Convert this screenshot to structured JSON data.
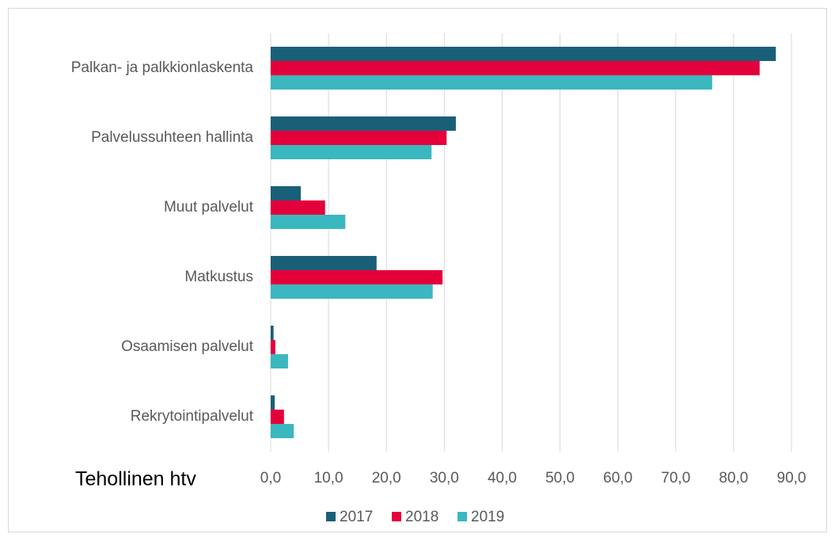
{
  "chart_data": {
    "type": "bar",
    "orientation": "horizontal",
    "x_label": "Tehollinen htv",
    "categories": [
      "Palkan- ja palkkionlaskenta",
      "Palvelussuhteen hallinta",
      "Muut palvelut",
      "Matkustus",
      "Osaamisen palvelut",
      "Rekrytointipalvelut"
    ],
    "series": [
      {
        "name": "2017",
        "color": "#1a5f78",
        "values": [
          87.3,
          32.0,
          5.2,
          18.3,
          0.5,
          0.7
        ]
      },
      {
        "name": "2018",
        "color": "#e4003a",
        "values": [
          84.5,
          30.4,
          9.4,
          29.7,
          0.8,
          2.3
        ]
      },
      {
        "name": "2019",
        "color": "#3bb7bf",
        "values": [
          76.3,
          27.8,
          12.9,
          28.0,
          3.0,
          4.0
        ]
      }
    ],
    "xlim": [
      0,
      90
    ],
    "xticks": [
      {
        "value": 0,
        "label": "0,0"
      },
      {
        "value": 10,
        "label": "10,0"
      },
      {
        "value": 20,
        "label": "20,0"
      },
      {
        "value": 30,
        "label": "30,0"
      },
      {
        "value": 40,
        "label": "40,0"
      },
      {
        "value": 50,
        "label": "50,0"
      },
      {
        "value": 60,
        "label": "60,0"
      },
      {
        "value": 70,
        "label": "70,0"
      },
      {
        "value": 80,
        "label": "80,0"
      },
      {
        "value": 90,
        "label": "90,0"
      }
    ],
    "grid": true,
    "legend": "bottom"
  }
}
